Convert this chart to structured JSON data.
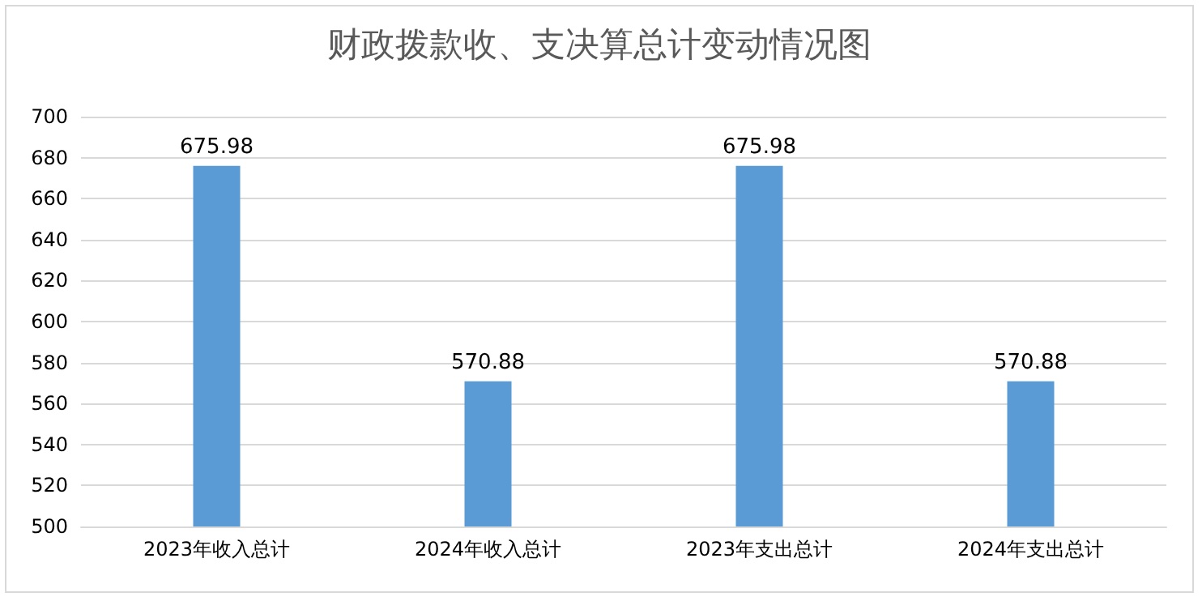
{
  "chart_data": {
    "type": "bar",
    "title": "财政拨款收、支决算总计变动情况图",
    "categories": [
      "2023年收入总计",
      "2024年收入总计",
      "2023年支出总计",
      "2024年支出总计"
    ],
    "values": [
      675.98,
      570.88,
      675.98,
      570.88
    ],
    "color": "#5b9bd5",
    "ylim": [
      500,
      700
    ],
    "yticks": [
      500,
      520,
      540,
      560,
      580,
      600,
      620,
      640,
      660,
      680,
      700
    ],
    "grid": "y",
    "data_labels": true
  }
}
